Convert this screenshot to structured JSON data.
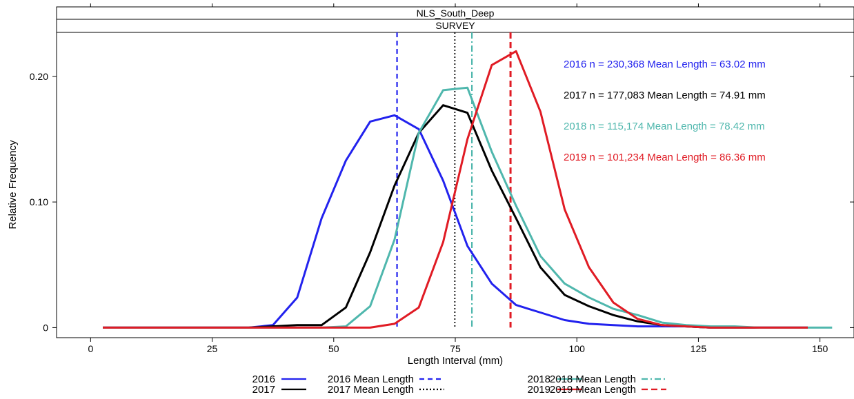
{
  "panel": {
    "strip_top": "NLS_South_Deep",
    "strip_bottom": "SURVEY"
  },
  "chart_data": {
    "type": "line",
    "xlabel": "Length Interval (mm)",
    "ylabel": "Relative Frequency",
    "xlim": [
      -7,
      157
    ],
    "ylim": [
      -0.008,
      0.235
    ],
    "xticks": [
      0,
      25,
      50,
      75,
      100,
      125,
      150
    ],
    "xtick_labels": [
      "0",
      "25",
      "50",
      "75",
      "100",
      "125",
      "150"
    ],
    "yticks": [
      0,
      0.1,
      0.2
    ],
    "ytick_labels": [
      "0",
      "0.10",
      "0.20"
    ],
    "grid": false,
    "series": [
      {
        "name": "2016",
        "color": "#2222ee",
        "x": [
          2.5,
          7.5,
          12.5,
          17.5,
          22.5,
          27.5,
          32.5,
          37.5,
          42.5,
          47.5,
          52.5,
          57.5,
          62.5,
          67.5,
          72.5,
          77.5,
          82.5,
          87.5,
          92.5,
          97.5,
          102.5,
          107.5,
          112.5,
          117.5,
          122.5,
          127.5,
          132.5,
          137.5,
          142.5,
          147.5
        ],
        "y": [
          0,
          0,
          0,
          0,
          0,
          0,
          0,
          0.002,
          0.024,
          0.087,
          0.133,
          0.164,
          0.169,
          0.158,
          0.117,
          0.065,
          0.035,
          0.018,
          0.012,
          0.006,
          0.003,
          0.002,
          0.001,
          0.001,
          0.001,
          0,
          0,
          0,
          0,
          0
        ]
      },
      {
        "name": "2017",
        "color": "#000000",
        "x": [
          2.5,
          7.5,
          12.5,
          17.5,
          22.5,
          27.5,
          32.5,
          37.5,
          42.5,
          47.5,
          52.5,
          57.5,
          62.5,
          67.5,
          72.5,
          77.5,
          82.5,
          87.5,
          92.5,
          97.5,
          102.5,
          107.5,
          112.5,
          117.5,
          122.5,
          127.5,
          132.5,
          137.5,
          142.5,
          147.5
        ],
        "y": [
          0,
          0,
          0,
          0,
          0,
          0,
          0,
          0.001,
          0.002,
          0.002,
          0.016,
          0.06,
          0.113,
          0.155,
          0.177,
          0.171,
          0.125,
          0.087,
          0.048,
          0.026,
          0.017,
          0.01,
          0.005,
          0.002,
          0.001,
          0,
          0,
          0,
          0,
          0
        ]
      },
      {
        "name": "2018",
        "color": "#4fb7ad",
        "x": [
          2.5,
          7.5,
          12.5,
          17.5,
          22.5,
          27.5,
          32.5,
          37.5,
          42.5,
          47.5,
          52.5,
          57.5,
          62.5,
          67.5,
          72.5,
          77.5,
          82.5,
          87.5,
          92.5,
          97.5,
          102.5,
          107.5,
          112.5,
          117.5,
          122.5,
          127.5,
          132.5,
          137.5,
          142.5,
          147.5,
          152.5
        ],
        "y": [
          0,
          0,
          0,
          0,
          0,
          0,
          0,
          0,
          0,
          0,
          0.001,
          0.017,
          0.07,
          0.155,
          0.189,
          0.191,
          0.14,
          0.097,
          0.057,
          0.035,
          0.024,
          0.015,
          0.01,
          0.004,
          0.002,
          0.001,
          0.001,
          0,
          0,
          0,
          0
        ]
      },
      {
        "name": "2019",
        "color": "#e01b24",
        "x": [
          2.5,
          7.5,
          12.5,
          17.5,
          22.5,
          27.5,
          32.5,
          37.5,
          42.5,
          47.5,
          52.5,
          57.5,
          62.5,
          67.5,
          72.5,
          77.5,
          82.5,
          87.5,
          92.5,
          97.5,
          102.5,
          107.5,
          112.5,
          117.5,
          122.5,
          127.5,
          132.5,
          137.5,
          142.5,
          147.5
        ],
        "y": [
          0,
          0,
          0,
          0,
          0,
          0,
          0,
          0,
          0,
          0,
          0,
          0,
          0.003,
          0.016,
          0.068,
          0.15,
          0.209,
          0.22,
          0.172,
          0.094,
          0.048,
          0.02,
          0.007,
          0.002,
          0.001,
          0,
          0,
          0,
          0,
          0
        ]
      }
    ],
    "mean_lines": [
      {
        "name": "2016 Mean Length",
        "x": 63.02,
        "color": "#2222ee",
        "dash": "7,5",
        "width": 2.2
      },
      {
        "name": "2017 Mean Length",
        "x": 74.91,
        "color": "#000000",
        "dash": "2,3",
        "width": 1.8
      },
      {
        "name": "2018 Mean Length",
        "x": 78.42,
        "color": "#4fb7ad",
        "dash": "9,4,2,4",
        "width": 2.2
      },
      {
        "name": "2019 Mean Length",
        "x": 86.36,
        "color": "#e01b24",
        "dash": "9,5",
        "width": 3
      }
    ],
    "annotations": [
      {
        "text": "2016 n = 230,368  Mean Length = 63.02 mm",
        "color": "#2222ee"
      },
      {
        "text": "2017 n = 177,083  Mean Length = 74.91 mm",
        "color": "#000000"
      },
      {
        "text": "2018 n = 115,174  Mean Length = 78.42 mm",
        "color": "#4fb7ad"
      },
      {
        "text": "2019 n = 101,234  Mean Length = 86.36 mm",
        "color": "#e01b24"
      }
    ],
    "legend": {
      "placement": "bottom",
      "items": [
        {
          "label": "2016",
          "color": "#2222ee",
          "dash": ""
        },
        {
          "label": "2017",
          "color": "#000000",
          "dash": ""
        },
        {
          "label": "2016 Mean Length",
          "color": "#2222ee",
          "dash": "7,5"
        },
        {
          "label": "2017 Mean Length",
          "color": "#000000",
          "dash": "2,3"
        },
        {
          "label": "2018",
          "color": "#4fb7ad",
          "dash": ""
        },
        {
          "label": "2019",
          "color": "#e01b24",
          "dash": ""
        },
        {
          "label": "2018 Mean Length",
          "color": "#4fb7ad",
          "dash": "9,4,2,4"
        },
        {
          "label": "2019 Mean Length",
          "color": "#e01b24",
          "dash": "9,5"
        }
      ]
    }
  }
}
